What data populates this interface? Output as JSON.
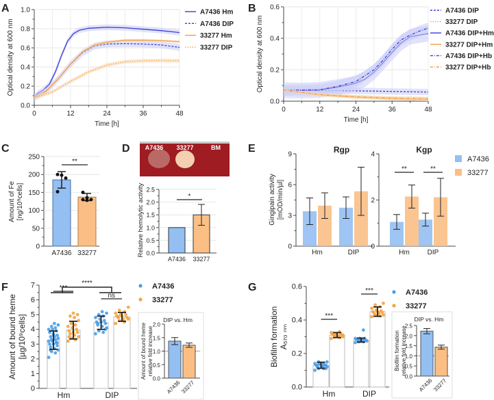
{
  "colors": {
    "A7436_line": "#3a3ad8",
    "33277_line": "#f0a040",
    "A7436_band": "#c8ccf6",
    "33277_band": "#fbd9b4",
    "A7436_bar": "#93bff2",
    "33277_bar": "#fbbf85",
    "A7436_dot": "#4a9de8",
    "33277_dot": "#f5a340"
  },
  "chart_data": [
    {
      "id": "A",
      "panel_label": "A",
      "type": "line",
      "xlabel": "Time [h]",
      "ylabel": "Optical density at 600 nm",
      "xlim": [
        0,
        48
      ],
      "ylim": [
        0,
        1.0
      ],
      "xtick_labels": [
        "0",
        "12",
        "24",
        "36",
        "48"
      ],
      "xticks": [
        0,
        12,
        24,
        36,
        48
      ],
      "ytick_labels": [
        "0.0",
        "0.2",
        "0.4",
        "0.6",
        "0.8",
        "1.0"
      ],
      "yticks": [
        0,
        0.2,
        0.4,
        0.6,
        0.8,
        1.0
      ],
      "grid": true,
      "legend": "right",
      "series": [
        {
          "name": "A7436 Hm",
          "strain": "A7436",
          "style": "solid",
          "band": 0.03,
          "points": [
            [
              0,
              0.08
            ],
            [
              1,
              0.12
            ],
            [
              3,
              0.16
            ],
            [
              5,
              0.22
            ],
            [
              7,
              0.35
            ],
            [
              9,
              0.52
            ],
            [
              11,
              0.67
            ],
            [
              13,
              0.75
            ],
            [
              15,
              0.785
            ],
            [
              18,
              0.805
            ],
            [
              24,
              0.815
            ],
            [
              30,
              0.81
            ],
            [
              36,
              0.795
            ],
            [
              42,
              0.78
            ],
            [
              48,
              0.76
            ]
          ]
        },
        {
          "name": "A7436 DIP",
          "strain": "A7436",
          "style": "dashed",
          "band": 0.035,
          "points": [
            [
              0,
              0.08
            ],
            [
              4,
              0.15
            ],
            [
              8,
              0.28
            ],
            [
              12,
              0.43
            ],
            [
              16,
              0.55
            ],
            [
              20,
              0.62
            ],
            [
              24,
              0.64
            ],
            [
              30,
              0.645
            ],
            [
              36,
              0.64
            ],
            [
              42,
              0.63
            ],
            [
              48,
              0.605
            ]
          ]
        },
        {
          "name": "33277 Hm",
          "strain": "33277",
          "style": "solid",
          "band": 0.015,
          "points": [
            [
              0,
              0.08
            ],
            [
              4,
              0.15
            ],
            [
              8,
              0.28
            ],
            [
              12,
              0.43
            ],
            [
              16,
              0.56
            ],
            [
              20,
              0.63
            ],
            [
              24,
              0.66
            ],
            [
              30,
              0.68
            ],
            [
              36,
              0.68
            ],
            [
              42,
              0.675
            ],
            [
              48,
              0.665
            ]
          ]
        },
        {
          "name": "33277 DIP",
          "strain": "33277",
          "style": "dotted",
          "band": 0.02,
          "points": [
            [
              0,
              0.08
            ],
            [
              6,
              0.14
            ],
            [
              12,
              0.25
            ],
            [
              18,
              0.35
            ],
            [
              24,
              0.42
            ],
            [
              30,
              0.455
            ],
            [
              36,
              0.465
            ],
            [
              42,
              0.468
            ],
            [
              48,
              0.465
            ]
          ]
        }
      ]
    },
    {
      "id": "B",
      "panel_label": "B",
      "type": "line",
      "xlabel": "Time [h]",
      "ylabel": "Optical density at 600 nm",
      "xlim": [
        0,
        48
      ],
      "ylim": [
        0,
        0.6
      ],
      "xtick_labels": [
        "0",
        "12",
        "24",
        "36",
        "48"
      ],
      "xticks": [
        0,
        12,
        24,
        36,
        48
      ],
      "ytick_labels": [
        "0.0",
        "0.2",
        "0.4",
        "0.6"
      ],
      "yticks": [
        0,
        0.2,
        0.4,
        0.6
      ],
      "grid": true,
      "legend": "right",
      "series": [
        {
          "name": "A7436 DIP",
          "strain": "A7436",
          "style": "dashed",
          "band": 0.02,
          "points": [
            [
              0,
              0.07
            ],
            [
              12,
              0.068
            ],
            [
              24,
              0.066
            ],
            [
              36,
              0.062
            ],
            [
              48,
              0.058
            ]
          ]
        },
        {
          "name": "33277 DIP",
          "strain": "33277",
          "style": "dotted",
          "band": 0.01,
          "points": [
            [
              0,
              0.07
            ],
            [
              12,
              0.045
            ],
            [
              24,
              0.03
            ],
            [
              36,
              0.022
            ],
            [
              48,
              0.02
            ]
          ]
        },
        {
          "name": "A7436 DIP+Hm",
          "strain": "A7436",
          "style": "solid",
          "band": 0.05,
          "points": [
            [
              0,
              0.07
            ],
            [
              6,
              0.068
            ],
            [
              12,
              0.072
            ],
            [
              18,
              0.09
            ],
            [
              22,
              0.105
            ],
            [
              24,
              0.115
            ],
            [
              27,
              0.14
            ],
            [
              30,
              0.185
            ],
            [
              33,
              0.245
            ],
            [
              36,
              0.31
            ],
            [
              39,
              0.37
            ],
            [
              42,
              0.41
            ],
            [
              45,
              0.42
            ],
            [
              48,
              0.43
            ]
          ]
        },
        {
          "name": "33277 DIP+Hm",
          "strain": "33277",
          "style": "solid",
          "band": 0.01,
          "points": [
            [
              0,
              0.07
            ],
            [
              12,
              0.04
            ],
            [
              24,
              0.025
            ],
            [
              36,
              0.015
            ],
            [
              48,
              0.01
            ]
          ]
        },
        {
          "name": "A7436 DIP+Hb",
          "strain": "A7436",
          "style": "dashdot",
          "band": 0.035,
          "points": [
            [
              0,
              0.07
            ],
            [
              12,
              0.072
            ],
            [
              18,
              0.095
            ],
            [
              24,
              0.125
            ],
            [
              30,
              0.2
            ],
            [
              33,
              0.26
            ],
            [
              36,
              0.33
            ],
            [
              39,
              0.39
            ],
            [
              42,
              0.42
            ],
            [
              45,
              0.445
            ],
            [
              48,
              0.465
            ]
          ]
        },
        {
          "name": "33277 DIP+Hb",
          "strain": "33277",
          "style": "dashdot",
          "band": 0.01,
          "points": [
            [
              0,
              0.07
            ],
            [
              12,
              0.042
            ],
            [
              24,
              0.028
            ],
            [
              36,
              0.02
            ],
            [
              48,
              0.015
            ]
          ]
        }
      ]
    },
    {
      "id": "C",
      "panel_label": "C",
      "type": "bar",
      "ylabel": [
        "Amount of Fe",
        "[ng/10⁹cells]"
      ],
      "ylim": [
        0,
        250
      ],
      "ytick_labels": [
        "0",
        "50",
        "100",
        "150",
        "200",
        "250"
      ],
      "yticks": [
        0,
        50,
        100,
        150,
        200,
        250
      ],
      "categories": [
        "A7436",
        "33277"
      ],
      "values": [
        185,
        137
      ],
      "errors": [
        23,
        10
      ],
      "points": [
        [
          200,
          198,
          190,
          152
        ],
        [
          150,
          135,
          130,
          130,
          128
        ]
      ],
      "significance": "**"
    },
    {
      "id": "D",
      "panel_label": "D",
      "type": "bar",
      "ylabel": "Relative hemolytic activity",
      "ylim": [
        0,
        2.5
      ],
      "plate_labels": [
        "A7436",
        "33277",
        "BM"
      ],
      "ytick_labels": [
        "0.0",
        "0.5",
        "1.0",
        "1.5",
        "2.0",
        "2.5"
      ],
      "yticks": [
        0,
        0.5,
        1,
        1.5,
        2,
        2.5
      ],
      "categories": [
        "A7436",
        "33277"
      ],
      "values": [
        1.0,
        1.5
      ],
      "errors": [
        0,
        0.41
      ],
      "significance": "*"
    },
    {
      "id": "E",
      "panel_label": "E",
      "type": "bar",
      "ylabel": [
        "Gingipain activity",
        "[mOD/min/µl]"
      ],
      "legend": [
        "A7436",
        "33277"
      ],
      "categories": [
        "Hm",
        "DIP"
      ],
      "subplots": [
        {
          "title": "Rgp",
          "ylim": [
            0,
            9
          ],
          "yticks": [
            0,
            3,
            6,
            9
          ],
          "ytick_labels": [
            "0",
            "3",
            "6",
            "9"
          ],
          "series": [
            {
              "strain": "A7436",
              "values": [
                3.4,
                3.75
              ],
              "errors": [
                1.3,
                1.05
              ]
            },
            {
              "strain": "33277",
              "values": [
                3.95,
                5.35
              ],
              "errors": [
                1.25,
                2.35
              ]
            }
          ],
          "significance": [
            "",
            ""
          ]
        },
        {
          "title": "Kgp",
          "ylim": [
            0,
            4
          ],
          "yticks": [
            0,
            2,
            4
          ],
          "ytick_labels": [
            "0",
            "2",
            "4"
          ],
          "series": [
            {
              "strain": "A7436",
              "values": [
                1.05,
                1.15
              ],
              "errors": [
                0.32,
                0.28
              ]
            },
            {
              "strain": "33277",
              "values": [
                2.15,
                2.12
              ],
              "errors": [
                0.5,
                0.82
              ]
            }
          ],
          "significance": [
            "**",
            "**"
          ]
        }
      ]
    },
    {
      "id": "F",
      "panel_label": "F",
      "type": "bar+scatter",
      "ylabel": [
        "Amount of bound heme",
        "[µg/10⁹cells]"
      ],
      "ylim": [
        0,
        7
      ],
      "yticks": [
        0,
        1,
        2,
        3,
        4,
        5,
        6,
        7
      ],
      "ytick_labels": [
        "0",
        "1",
        "2",
        "3",
        "4",
        "5",
        "6",
        "7"
      ],
      "categories": [
        "Hm",
        "DIP"
      ],
      "legend": [
        "A7436",
        "33277"
      ],
      "series": [
        {
          "strain": "A7436",
          "values": [
            3.27,
            4.45
          ],
          "errors": [
            0.62,
            0.45
          ],
          "points": [
            [
              2.1,
              2.4,
              2.5,
              2.6,
              2.7,
              2.8,
              2.9,
              3.0,
              3.0,
              3.1,
              3.2,
              3.2,
              3.3,
              3.3,
              3.4,
              3.5,
              3.5,
              3.6,
              3.7,
              3.8,
              3.9,
              4.0,
              4.0,
              4.1,
              4.2,
              4.3,
              4.4,
              2.6,
              3.1,
              3.6
            ],
            [
              3.7,
              3.8,
              3.9,
              4.1,
              4.2,
              4.3,
              4.4,
              4.5,
              4.5,
              4.6,
              4.7,
              4.8,
              4.9,
              5.0,
              5.1,
              5.2,
              4.4,
              4.0
            ]
          ]
        },
        {
          "strain": "33277",
          "values": [
            3.95,
            4.85
          ],
          "errors": [
            0.6,
            0.3
          ],
          "points": [
            [
              3.2,
              3.3,
              3.4,
              3.5,
              3.6,
              3.7,
              3.8,
              3.8,
              3.9,
              4.0,
              4.1,
              4.2,
              4.3,
              4.4,
              4.6,
              4.8,
              4.9,
              5.0,
              5.1,
              3.5
            ],
            [
              4.4,
              4.5,
              4.6,
              4.7,
              4.7,
              4.8,
              4.8,
              4.9,
              4.9,
              5.0,
              5.0,
              5.1,
              5.2,
              5.3,
              5.5,
              4.6,
              4.85
            ]
          ]
        }
      ],
      "significance": {
        "within": [
          "***",
          "ns"
        ],
        "between": "****"
      },
      "inset": {
        "title": "DIP vs. Hm",
        "ylabel": [
          "Amount of bound heme",
          "relative fold increase"
        ],
        "ylim": [
          0,
          2.0
        ],
        "yticks": [
          0,
          0.5,
          1,
          1.5,
          2
        ],
        "ytick_labels": [
          "0.0",
          "0.5",
          "1.0",
          "1.5",
          "2.0"
        ],
        "reference_line": 1.0,
        "categories": [
          "A7436",
          "33277"
        ],
        "values": [
          1.37,
          1.22
        ],
        "errors": [
          0.13,
          0.08
        ]
      }
    },
    {
      "id": "G",
      "panel_label": "G",
      "type": "bar+scatter",
      "ylabel": [
        "Biofilm formation",
        "A₅₇₀ ₙₘ"
      ],
      "ylim": [
        0,
        0.6
      ],
      "yticks": [
        0,
        0.2,
        0.4,
        0.6
      ],
      "ytick_labels": [
        "0.0",
        "0.2",
        "0.4",
        "0.6"
      ],
      "categories": [
        "Hm",
        "DIP"
      ],
      "legend": [
        "A7436",
        "33277"
      ],
      "series": [
        {
          "strain": "A7436",
          "values": [
            0.13,
            0.28
          ],
          "errors": [
            0.018,
            0.012
          ],
          "points": [
            [
              0.1,
              0.11,
              0.11,
              0.12,
              0.12,
              0.12,
              0.13,
              0.13,
              0.13,
              0.13,
              0.14,
              0.14,
              0.14,
              0.15,
              0.15,
              0.12,
              0.13,
              0.11
            ],
            [
              0.265,
              0.27,
              0.27,
              0.275,
              0.28,
              0.28,
              0.28,
              0.285,
              0.285,
              0.29,
              0.29,
              0.29,
              0.34,
              0.275
            ]
          ]
        },
        {
          "strain": "33277",
          "values": [
            0.31,
            0.45
          ],
          "errors": [
            0.015,
            0.028
          ],
          "points": [
            [
              0.29,
              0.295,
              0.3,
              0.3,
              0.305,
              0.31,
              0.31,
              0.31,
              0.315,
              0.32,
              0.32,
              0.325,
              0.33,
              0.3,
              0.31
            ],
            [
              0.42,
              0.425,
              0.43,
              0.43,
              0.44,
              0.44,
              0.445,
              0.45,
              0.45,
              0.455,
              0.46,
              0.47,
              0.48,
              0.49,
              0.5,
              0.44
            ]
          ]
        }
      ],
      "significance": {
        "within": [
          "***",
          "***"
        ]
      },
      "inset": {
        "title": "DIP vs. Hm",
        "ylabel": [
          "Biofilm formation",
          "relative fold increase"
        ],
        "ylim": [
          0,
          2.5
        ],
        "yticks": [
          0,
          0.5,
          1,
          1.5,
          2,
          2.5
        ],
        "ytick_labels": [
          "0.0",
          "0.5",
          "1.0",
          "1.5",
          "2.0",
          "2.5"
        ],
        "reference_line": 1.0,
        "categories": [
          "A7436",
          "33277"
        ],
        "values": [
          2.22,
          1.43
        ],
        "errors": [
          0.13,
          0.1
        ]
      }
    }
  ]
}
